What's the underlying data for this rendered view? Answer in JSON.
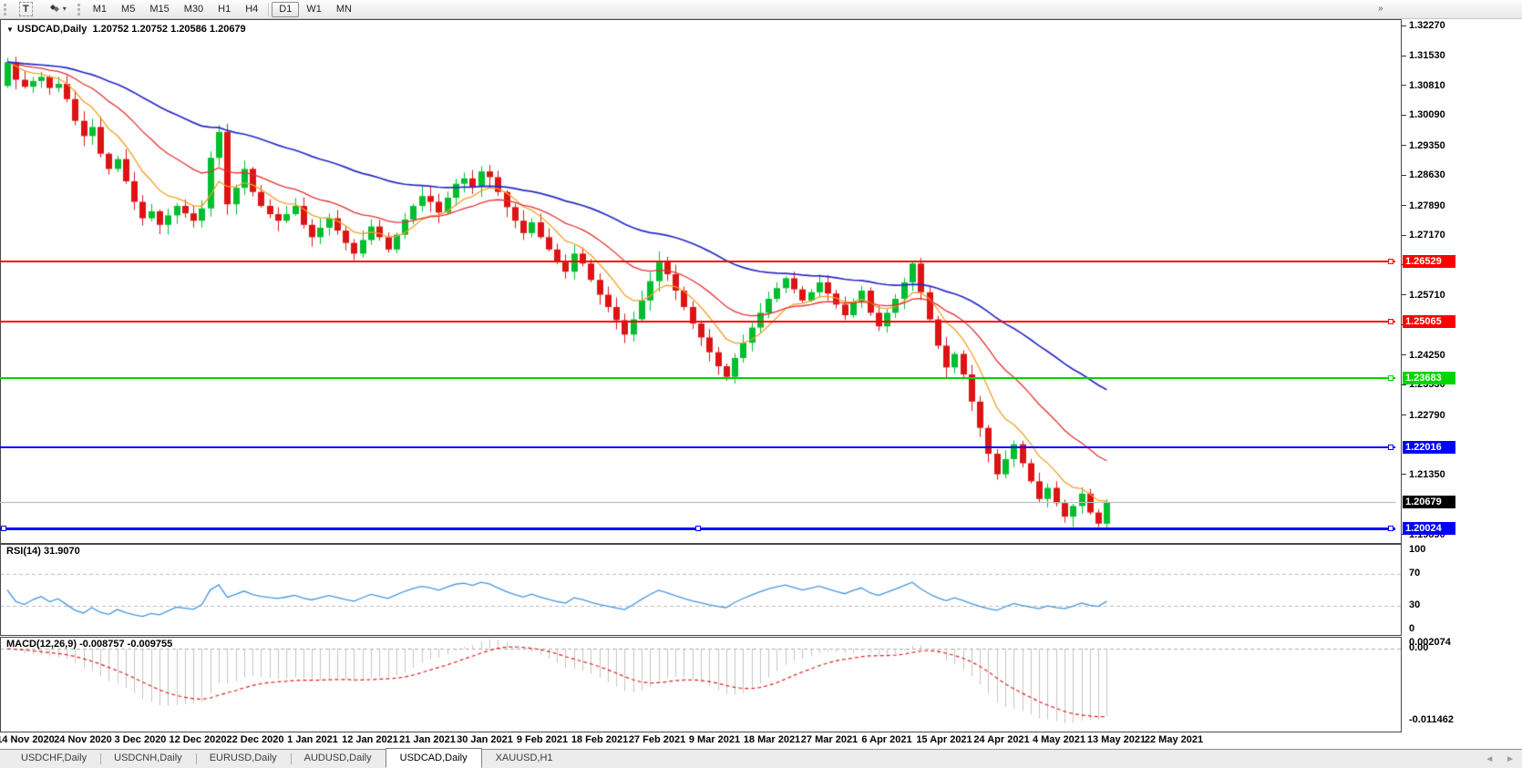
{
  "toolbar": {
    "text_tool_label": "T",
    "timeframes": [
      "M1",
      "M5",
      "M15",
      "M30",
      "H1",
      "H4",
      "D1",
      "W1",
      "MN"
    ],
    "active_timeframe": "D1"
  },
  "chart": {
    "symbol_title": "USDCAD,Daily",
    "ohlc": "1.20752 1.20752 1.20586 1.20679"
  },
  "price_axis": {
    "ticks": [
      "1.32270",
      "1.31530",
      "1.30810",
      "1.30090",
      "1.29350",
      "1.28630",
      "1.27890",
      "1.27170",
      "1.26450",
      "1.25710",
      "1.24990",
      "1.24250",
      "1.23530",
      "1.22790",
      "1.21350",
      "1.19890"
    ]
  },
  "hlines": [
    {
      "label": "1.26529",
      "price": 1.26529,
      "color": "#FF0000",
      "width": 2
    },
    {
      "label": "1.25065",
      "price": 1.25065,
      "color": "#FF0000",
      "width": 2
    },
    {
      "label": "1.23683",
      "price": 1.23683,
      "color": "#00D400",
      "width": 2
    },
    {
      "label": "1.22016",
      "price": 1.22016,
      "color": "#0000FF",
      "width": 2
    },
    {
      "label": "1.20024",
      "price": 1.20024,
      "color": "#0000FF",
      "width": 3
    }
  ],
  "current_price": {
    "label": "1.20679",
    "price": 1.20679
  },
  "rsi": {
    "label": "RSI(14) 31.9070",
    "levels": [
      "100",
      "70",
      "30",
      "0"
    ]
  },
  "macd": {
    "label": "MACD(12,26,9) -0.008757 -0.009755",
    "axis": [
      "0.002074",
      "0.00",
      "-0.011462"
    ]
  },
  "time_axis": [
    "14 Nov 2020",
    "24 Nov 2020",
    "3 Dec 2020",
    "12 Dec 2020",
    "22 Dec 2020",
    "1 Jan 2021",
    "12 Jan 2021",
    "21 Jan 2021",
    "30 Jan 2021",
    "9 Feb 2021",
    "18 Feb 2021",
    "27 Feb 2021",
    "9 Mar 2021",
    "18 Mar 2021",
    "27 Mar 2021",
    "6 Apr 2021",
    "15 Apr 2021",
    "24 Apr 2021",
    "4 May 2021",
    "13 May 2021",
    "22 May 2021"
  ],
  "tabs": {
    "items": [
      "USDCHF,Daily",
      "USDCNH,Daily",
      "EURUSD,Daily",
      "AUDUSD,Daily",
      "USDCAD,Daily",
      "XAUUSD,H1"
    ],
    "active_index": 4
  },
  "colors": {
    "bull": "#00BE2F",
    "bear": "#DD1414",
    "ma_fast": "#F0A028",
    "ma_mid": "#E03232",
    "ma_slow": "#2828C8",
    "rsi_line": "#4696E0",
    "rsi_level": "#BDBDBD",
    "macd_hist": "#C4C4C4",
    "macd_signal": "#E02020",
    "macd_zero": "#ABABAB",
    "current_line": "#C2C2C2",
    "current_badge": "#000000"
  },
  "chart_data": {
    "type": "candlestick",
    "symbol": "USDCAD",
    "timeframe": "Daily",
    "ohlc_display": {
      "open": "1.20752",
      "high": "1.20752",
      "low": "1.20586",
      "close": "1.20679"
    },
    "ylim": [
      1.1989,
      1.3227
    ],
    "x_labels": [
      "14 Nov 2020",
      "24 Nov 2020",
      "3 Dec 2020",
      "12 Dec 2020",
      "22 Dec 2020",
      "1 Jan 2021",
      "12 Jan 2021",
      "21 Jan 2021",
      "30 Jan 2021",
      "9 Feb 2021",
      "18 Feb 2021",
      "27 Feb 2021",
      "9 Mar 2021",
      "18 Mar 2021",
      "27 Mar 2021",
      "6 Apr 2021",
      "15 Apr 2021",
      "24 Apr 2021",
      "4 May 2021",
      "13 May 2021",
      "22 May 2021"
    ],
    "first_open": 1.308,
    "closes": [
      1.3138,
      1.3095,
      1.3078,
      1.3092,
      1.3102,
      1.3075,
      1.3085,
      1.3048,
      1.2995,
      1.2958,
      1.298,
      1.2915,
      1.2878,
      1.2902,
      1.2848,
      1.2798,
      1.2758,
      1.2775,
      1.2742,
      1.2765,
      1.2788,
      1.277,
      1.2752,
      1.2782,
      1.2905,
      1.2968,
      1.2792,
      1.2832,
      1.2878,
      1.2822,
      1.2788,
      1.2768,
      1.2752,
      1.2768,
      1.2788,
      1.2742,
      1.2712,
      1.2735,
      1.2758,
      1.2728,
      1.2698,
      1.2672,
      1.2705,
      1.2738,
      1.2712,
      1.2682,
      1.2718,
      1.2755,
      1.2788,
      1.2812,
      1.2798,
      1.2772,
      1.2808,
      1.2842,
      1.2855,
      1.2835,
      1.2872,
      1.2858,
      1.2822,
      1.2785,
      1.2752,
      1.2722,
      1.2748,
      1.2712,
      1.2682,
      1.2652,
      1.2628,
      1.2672,
      1.2648,
      1.2608,
      1.2572,
      1.2542,
      1.251,
      1.2475,
      1.2512,
      1.2558,
      1.2605,
      1.2652,
      1.2622,
      1.2582,
      1.2542,
      1.2502,
      1.2468,
      1.2432,
      1.2398,
      1.2372,
      1.2418,
      1.2455,
      1.2492,
      1.2528,
      1.2562,
      1.2588,
      1.2612,
      1.2585,
      1.2558,
      1.2578,
      1.2602,
      1.2575,
      1.2548,
      1.2522,
      1.2555,
      1.2582,
      1.2528,
      1.2495,
      1.2528,
      1.2562,
      1.2602,
      1.2648,
      1.2578,
      1.2512,
      1.2448,
      1.2395,
      1.2428,
      1.2378,
      1.2312,
      1.2248,
      1.2185,
      1.2135,
      1.2172,
      1.2208,
      1.2162,
      1.2118,
      1.2075,
      1.2102,
      1.2065,
      1.2032,
      1.2058,
      1.2088,
      1.2042,
      1.2015,
      1.20679
    ],
    "indicators": {
      "moving_averages": [
        {
          "period": 8,
          "color": "#F0A028"
        },
        {
          "period": 20,
          "color": "#E03232"
        },
        {
          "period": 50,
          "color": "#2828C8"
        }
      ],
      "rsi": {
        "period": 14,
        "current": 31.907,
        "levels": [
          70,
          30
        ]
      },
      "macd": {
        "fast": 12,
        "slow": 26,
        "signal": 9,
        "value": -0.008757,
        "signal_value": -0.009755
      }
    },
    "horizontal_levels": [
      1.26529,
      1.25065,
      1.23683,
      1.22016,
      1.20024
    ]
  }
}
